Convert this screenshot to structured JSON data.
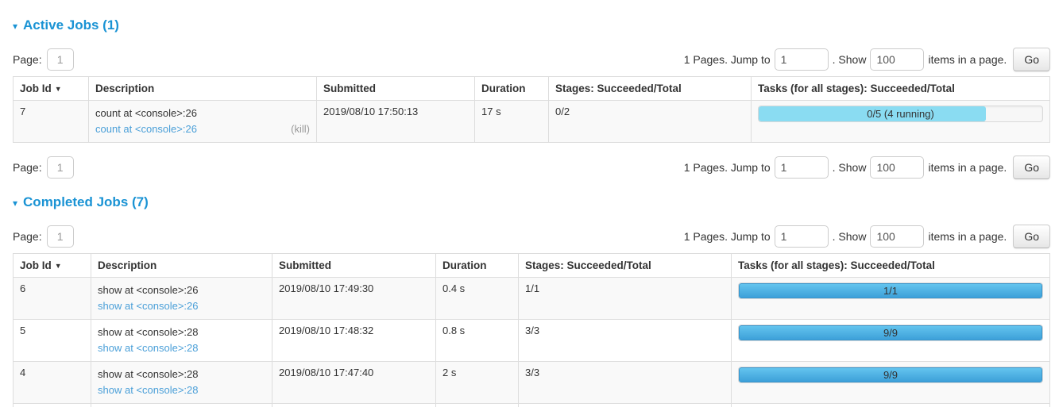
{
  "colors": {
    "title_blue": "#1a93d4",
    "link_blue": "#4a9fd8",
    "running_bar": "#8adcf2",
    "completed_bar_top": "#63c4ee",
    "completed_bar_bottom": "#3da0d9",
    "stripe_row": "#f9f9f9"
  },
  "icons": {
    "collapse_arrow": "▾",
    "sort_arrow": "▼"
  },
  "pagination": {
    "page_label": "Page:",
    "page_value": "1",
    "pages_text": "1 Pages. Jump to",
    "jump_value": "1",
    "show_text": ". Show",
    "show_value": "100",
    "items_text": "items in a page.",
    "go_label": "Go"
  },
  "table_headers": [
    "Job Id",
    "Description",
    "Submitted",
    "Duration",
    "Stages: Succeeded/Total",
    "Tasks (for all stages): Succeeded/Total"
  ],
  "active_jobs": {
    "title": "Active Jobs (1)",
    "rows": [
      {
        "job_id": "7",
        "description": "count at <console>:26",
        "description_link": "count at <console>:26",
        "kill_label": "(kill)",
        "submitted": "2019/08/10 17:50:13",
        "duration": "17 s",
        "stages": "0/2",
        "tasks_label": "0/5 (4 running)",
        "progress_percent": 80
      }
    ]
  },
  "completed_jobs": {
    "title": "Completed Jobs (7)",
    "rows": [
      {
        "job_id": "6",
        "description": "show at <console>:26",
        "description_link": "show at <console>:26",
        "submitted": "2019/08/10 17:49:30",
        "duration": "0.4 s",
        "stages": "1/1",
        "tasks_label": "1/1",
        "progress_percent": 100
      },
      {
        "job_id": "5",
        "description": "show at <console>:28",
        "description_link": "show at <console>:28",
        "submitted": "2019/08/10 17:48:32",
        "duration": "0.8 s",
        "stages": "3/3",
        "tasks_label": "9/9",
        "progress_percent": 100
      },
      {
        "job_id": "4",
        "description": "show at <console>:28",
        "description_link": "show at <console>:28",
        "submitted": "2019/08/10 17:47:40",
        "duration": "2 s",
        "stages": "3/3",
        "tasks_label": "9/9",
        "progress_percent": 100
      }
    ]
  }
}
